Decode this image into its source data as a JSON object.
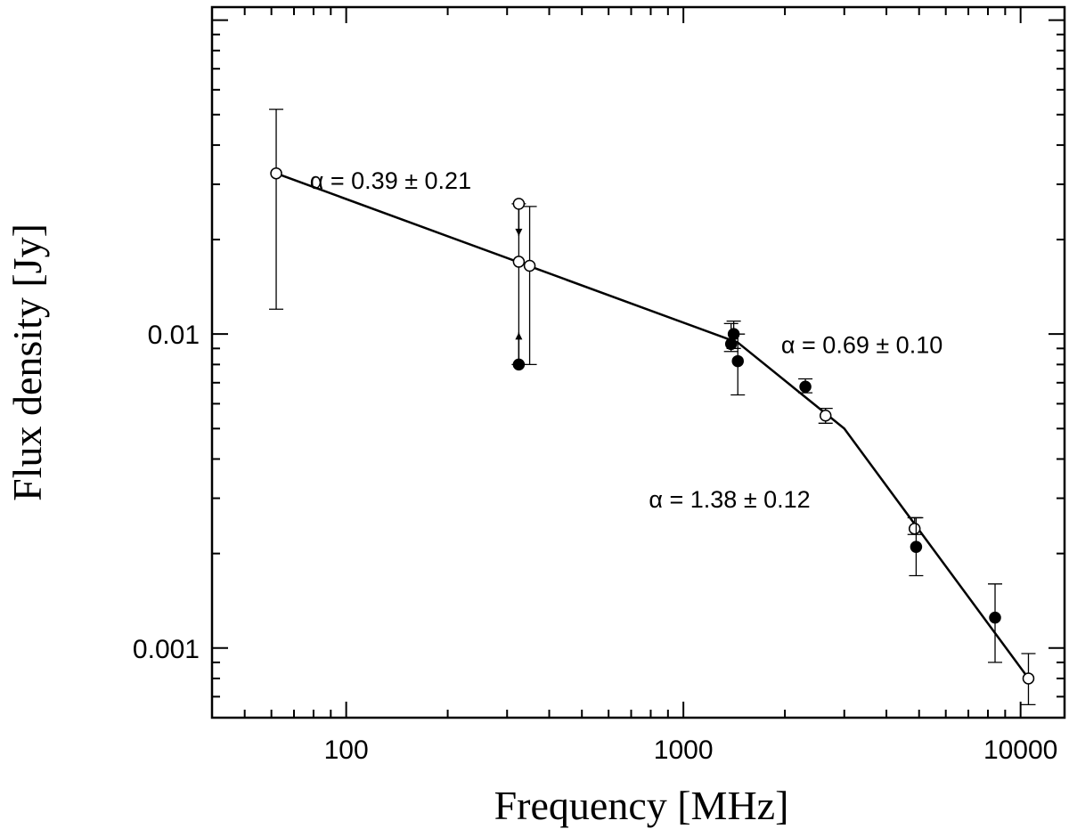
{
  "chart_data": {
    "type": "scatter",
    "title": "",
    "xlabel": "Frequency [MHz]",
    "ylabel": "Flux density [Jy]",
    "xscale": "log",
    "yscale": "log",
    "xlim": [
      40,
      13500
    ],
    "ylim": [
      0.0006,
      0.11
    ],
    "x_ticks": [
      {
        "value": 100,
        "label": "100"
      },
      {
        "value": 1000,
        "label": "1000"
      },
      {
        "value": 10000,
        "label": "10000"
      }
    ],
    "y_ticks": [
      {
        "value": 0.001,
        "label": "0.001"
      },
      {
        "value": 0.01,
        "label": "0.01"
      }
    ],
    "series": [
      {
        "name": "open",
        "marker": "open-circle",
        "points": [
          {
            "x": 62,
            "y": 0.0325,
            "err_low": 0.012,
            "err_high": 0.052
          },
          {
            "x": 325,
            "y": 0.017,
            "err_low": 0.008,
            "err_high": 0.026
          },
          {
            "x": 350,
            "y": 0.0165,
            "err_low": 0.008,
            "err_high": 0.0255
          },
          {
            "x": 2640,
            "y": 0.0055,
            "err_low": 0.0052,
            "err_high": 0.0058
          },
          {
            "x": 4850,
            "y": 0.0024,
            "err_low": 0.0023,
            "err_high": 0.0026
          },
          {
            "x": 10550,
            "y": 0.0008,
            "err_low": 0.00066,
            "err_high": 0.00096
          }
        ]
      },
      {
        "name": "filled",
        "marker": "filled-circle",
        "points": [
          {
            "x": 1385,
            "y": 0.0093,
            "err_low": 0.0088,
            "err_high": 0.0108
          },
          {
            "x": 1410,
            "y": 0.01,
            "err_low": 0.009,
            "err_high": 0.011
          },
          {
            "x": 1450,
            "y": 0.0082,
            "err_low": 0.0064,
            "err_high": 0.01
          },
          {
            "x": 2300,
            "y": 0.0068,
            "err_low": 0.0065,
            "err_high": 0.0072
          },
          {
            "x": 4900,
            "y": 0.0021,
            "err_low": 0.0017,
            "err_high": 0.0026
          },
          {
            "x": 8400,
            "y": 0.00125,
            "err_low": 0.0009,
            "err_high": 0.0016
          }
        ]
      },
      {
        "name": "limits",
        "marker": "limit",
        "points": [
          {
            "x": 325,
            "y": 0.026,
            "marker": "open-circle",
            "direction": "down"
          },
          {
            "x": 325,
            "y": 0.008,
            "marker": "filled-circle",
            "direction": "up"
          }
        ]
      }
    ],
    "fit_line": [
      {
        "x": 62,
        "y": 0.0325
      },
      {
        "x": 1450,
        "y": 0.0094
      },
      {
        "x": 3000,
        "y": 0.005
      },
      {
        "x": 10550,
        "y": 0.0008
      }
    ],
    "annotations": [
      {
        "text": "α = 0.39 ± 0.21",
        "x": 78,
        "y": 0.029
      },
      {
        "text": "α = 0.69 ± 0.10",
        "x": 1950,
        "y": 0.0087
      },
      {
        "text": "α = 1.38 ± 0.12",
        "x": 790,
        "y": 0.0028
      }
    ]
  }
}
